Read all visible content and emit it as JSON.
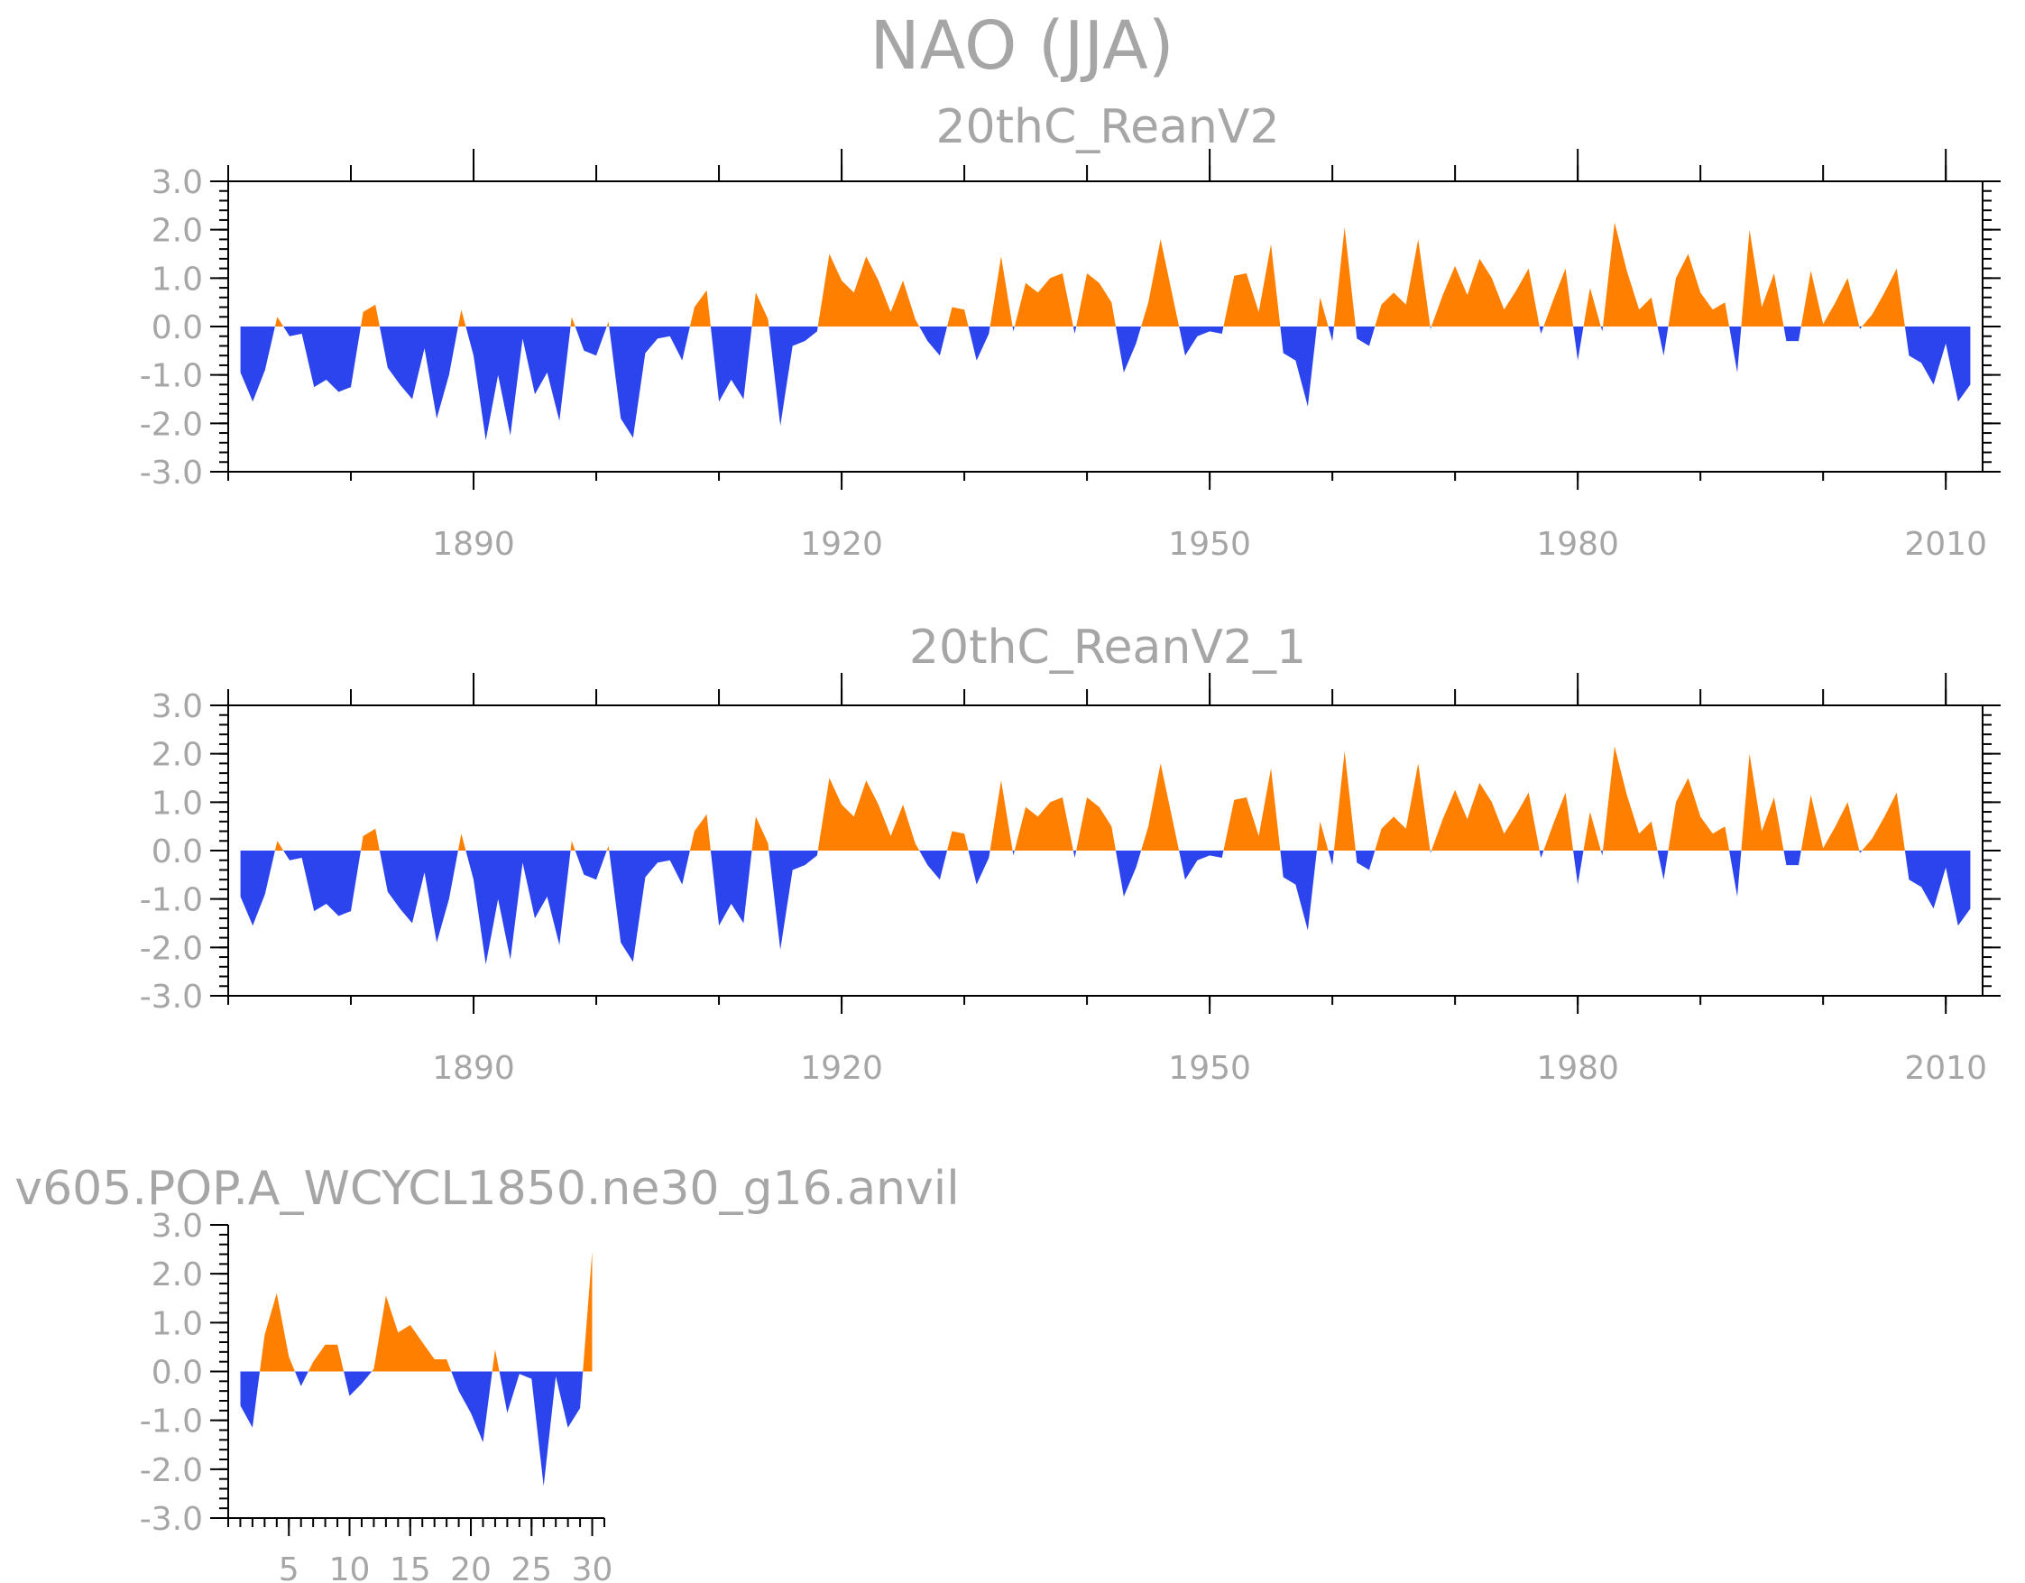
{
  "figure_title": "NAO  (JJA)",
  "colors": {
    "positive": "#ff8000",
    "negative": "#2b44ee",
    "text": "#a6a6a6",
    "axis": "#000000"
  },
  "chart_data": [
    {
      "type": "area",
      "title": "20thC_ReanV2",
      "ylim": [
        -3,
        3
      ],
      "yticks": [
        "3.0",
        "2.0",
        "1.0",
        "0.0",
        "-1.0",
        "-2.0",
        "-3.0"
      ],
      "xlim": [
        1870,
        2013
      ],
      "xticks": [
        "1890",
        "1920",
        "1950",
        "1980",
        "2010"
      ],
      "x_start": 1871,
      "values": [
        -0.95,
        -1.55,
        -0.9,
        0.2,
        -0.2,
        -0.15,
        -1.25,
        -1.1,
        -1.35,
        -1.25,
        0.3,
        0.45,
        -0.85,
        -1.2,
        -1.5,
        -0.45,
        -1.9,
        -1.0,
        0.35,
        -0.6,
        -2.35,
        -1.0,
        -2.25,
        -0.25,
        -1.4,
        -0.95,
        -1.95,
        0.2,
        -0.5,
        -0.6,
        0.1,
        -1.9,
        -2.3,
        -0.55,
        -0.25,
        -0.2,
        -0.7,
        0.4,
        0.75,
        -1.55,
        -1.1,
        -1.5,
        0.7,
        0.15,
        -2.05,
        -0.4,
        -0.3,
        -0.1,
        1.5,
        0.95,
        0.7,
        1.45,
        0.95,
        0.3,
        0.95,
        0.15,
        -0.3,
        -0.6,
        0.4,
        0.35,
        -0.7,
        -0.15,
        1.45,
        -0.1,
        0.9,
        0.7,
        1.0,
        1.1,
        -0.15,
        1.1,
        0.9,
        0.5,
        -0.95,
        -0.35,
        0.5,
        1.8,
        0.6,
        -0.6,
        -0.2,
        -0.1,
        -0.15,
        1.05,
        1.1,
        0.3,
        1.7,
        -0.55,
        -0.7,
        -1.65,
        0.6,
        -0.3,
        2.05,
        -0.25,
        -0.4,
        0.45,
        0.7,
        0.45,
        1.8,
        -0.05,
        0.65,
        1.25,
        0.65,
        1.4,
        1.0,
        0.35,
        0.75,
        1.2,
        -0.15,
        0.55,
        1.2,
        -0.7,
        0.8,
        -0.1,
        2.15,
        1.15,
        0.35,
        0.6,
        -0.6,
        1.0,
        1.5,
        0.7,
        0.35,
        0.5,
        -0.95,
        2.0,
        0.4,
        1.1,
        -0.3,
        -0.3,
        1.15,
        0.05,
        0.5,
        1.0,
        -0.05,
        0.25,
        0.7,
        1.2,
        -0.6,
        -0.75,
        -1.2,
        -0.35,
        -1.55,
        -1.2
      ]
    },
    {
      "type": "area",
      "title": "20thC_ReanV2_1",
      "ylim": [
        -3,
        3
      ],
      "yticks": [
        "3.0",
        "2.0",
        "1.0",
        "0.0",
        "-1.0",
        "-2.0",
        "-3.0"
      ],
      "xlim": [
        1870,
        2013
      ],
      "xticks": [
        "1890",
        "1920",
        "1950",
        "1980",
        "2010"
      ],
      "x_start": 1871,
      "values": [
        -0.95,
        -1.55,
        -0.9,
        0.2,
        -0.2,
        -0.15,
        -1.25,
        -1.1,
        -1.35,
        -1.25,
        0.3,
        0.45,
        -0.85,
        -1.2,
        -1.5,
        -0.45,
        -1.9,
        -1.0,
        0.35,
        -0.6,
        -2.35,
        -1.0,
        -2.25,
        -0.25,
        -1.4,
        -0.95,
        -1.95,
        0.2,
        -0.5,
        -0.6,
        0.1,
        -1.9,
        -2.3,
        -0.55,
        -0.25,
        -0.2,
        -0.7,
        0.4,
        0.75,
        -1.55,
        -1.1,
        -1.5,
        0.7,
        0.15,
        -2.05,
        -0.4,
        -0.3,
        -0.1,
        1.5,
        0.95,
        0.7,
        1.45,
        0.95,
        0.3,
        0.95,
        0.15,
        -0.3,
        -0.6,
        0.4,
        0.35,
        -0.7,
        -0.15,
        1.45,
        -0.1,
        0.9,
        0.7,
        1.0,
        1.1,
        -0.15,
        1.1,
        0.9,
        0.5,
        -0.95,
        -0.35,
        0.5,
        1.8,
        0.6,
        -0.6,
        -0.2,
        -0.1,
        -0.15,
        1.05,
        1.1,
        0.3,
        1.7,
        -0.55,
        -0.7,
        -1.65,
        0.6,
        -0.3,
        2.05,
        -0.25,
        -0.4,
        0.45,
        0.7,
        0.45,
        1.8,
        -0.05,
        0.65,
        1.25,
        0.65,
        1.4,
        1.0,
        0.35,
        0.75,
        1.2,
        -0.15,
        0.55,
        1.2,
        -0.7,
        0.8,
        -0.1,
        2.15,
        1.15,
        0.35,
        0.6,
        -0.6,
        1.0,
        1.5,
        0.7,
        0.35,
        0.5,
        -0.95,
        2.0,
        0.4,
        1.1,
        -0.3,
        -0.3,
        1.15,
        0.05,
        0.5,
        1.0,
        -0.05,
        0.25,
        0.7,
        1.2,
        -0.6,
        -0.75,
        -1.2,
        -0.35,
        -1.55,
        -1.2
      ]
    },
    {
      "type": "area",
      "title": "v605.POP.A_WCYCL1850.ne30_g16.anvil",
      "ylim": [
        -3,
        3
      ],
      "yticks": [
        "3.0",
        "2.0",
        "1.0",
        "0.0",
        "-1.0",
        "-2.0",
        "-3.0"
      ],
      "xlim": [
        0,
        31
      ],
      "xticks": [
        "5",
        "10",
        "15",
        "20",
        "25",
        "30"
      ],
      "x_start": 1,
      "values": [
        -0.7,
        -1.15,
        0.75,
        1.6,
        0.3,
        -0.3,
        0.2,
        0.55,
        0.55,
        -0.5,
        -0.25,
        0.05,
        1.55,
        0.8,
        0.95,
        0.6,
        0.25,
        0.25,
        -0.4,
        -0.85,
        -1.45,
        0.45,
        -0.85,
        -0.05,
        -0.15,
        -2.35,
        -0.1,
        -1.15,
        -0.75,
        2.45
      ]
    }
  ]
}
